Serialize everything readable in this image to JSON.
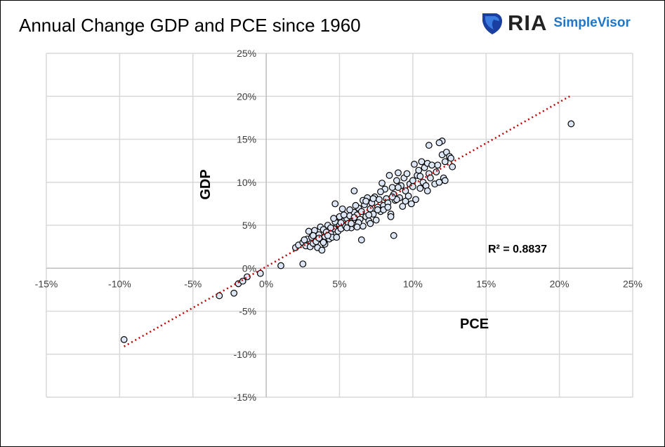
{
  "title": "Annual Change GDP and PCE since 1960",
  "logo": {
    "brand": "RIA",
    "product": "SimpleVisor",
    "brand_color": "#1e77c8"
  },
  "chart_data": {
    "type": "scatter",
    "title": "Annual Change GDP and PCE since 1960",
    "xlabel": "PCE",
    "ylabel": "GDP",
    "xlim": [
      -15,
      25
    ],
    "ylim": [
      -15,
      25
    ],
    "x_ticks": [
      "-15%",
      "-10%",
      "-5%",
      "0%",
      "5%",
      "10%",
      "15%",
      "20%",
      "25%"
    ],
    "y_ticks": [
      "25%",
      "20%",
      "15%",
      "10%",
      "5%",
      "0%",
      "-5%",
      "-10%",
      "-15%"
    ],
    "grid": true,
    "marker_fill": "#dce6f4",
    "marker_edge": "#000000",
    "trendline": {
      "type": "linear",
      "color": "#c00000",
      "style": "dotted",
      "from": [
        -9.7,
        -9.1
      ],
      "to": [
        20.7,
        20.0
      ]
    },
    "annotation": "R² = 0.8837",
    "points": [
      [
        -9.7,
        -8.3
      ],
      [
        -3.2,
        -3.2
      ],
      [
        -2.2,
        -2.9
      ],
      [
        -1.9,
        -1.8
      ],
      [
        -1.6,
        -1.5
      ],
      [
        -1.3,
        -1.0
      ],
      [
        -0.4,
        -0.6
      ],
      [
        1.0,
        0.3
      ],
      [
        2.5,
        0.5
      ],
      [
        6.5,
        3.3
      ],
      [
        8.7,
        3.8
      ],
      [
        20.8,
        16.8
      ],
      [
        12.0,
        14.8
      ],
      [
        11.8,
        14.6
      ],
      [
        11.1,
        14.3
      ],
      [
        2.0,
        2.4
      ],
      [
        2.2,
        2.7
      ],
      [
        2.5,
        3.0
      ],
      [
        2.7,
        2.6
      ],
      [
        2.8,
        3.4
      ],
      [
        2.9,
        4.3
      ],
      [
        3.0,
        2.5
      ],
      [
        3.1,
        3.6
      ],
      [
        3.2,
        2.9
      ],
      [
        3.3,
        4.4
      ],
      [
        3.4,
        3.1
      ],
      [
        3.5,
        2.4
      ],
      [
        3.6,
        3.9
      ],
      [
        3.7,
        4.8
      ],
      [
        3.8,
        2.1
      ],
      [
        3.8,
        3.3
      ],
      [
        3.9,
        4.5
      ],
      [
        4.0,
        2.8
      ],
      [
        4.0,
        3.7
      ],
      [
        4.1,
        4.2
      ],
      [
        4.2,
        5.0
      ],
      [
        4.3,
        3.4
      ],
      [
        4.4,
        4.0
      ],
      [
        4.5,
        3.6
      ],
      [
        4.6,
        4.6
      ],
      [
        4.7,
        5.4
      ],
      [
        4.7,
        7.5
      ],
      [
        4.8,
        3.6
      ],
      [
        4.9,
        4.3
      ],
      [
        5.0,
        5.0
      ],
      [
        5.0,
        6.0
      ],
      [
        5.1,
        4.6
      ],
      [
        5.2,
        6.9
      ],
      [
        5.3,
        5.5
      ],
      [
        5.4,
        4.9
      ],
      [
        5.5,
        5.8
      ],
      [
        5.6,
        5.2
      ],
      [
        5.7,
        6.1
      ],
      [
        5.8,
        4.7
      ],
      [
        5.9,
        5.5
      ],
      [
        6.0,
        6.5
      ],
      [
        6.0,
        9.0
      ],
      [
        6.1,
        5.0
      ],
      [
        6.2,
        6.2
      ],
      [
        6.3,
        7.0
      ],
      [
        6.4,
        5.7
      ],
      [
        6.5,
        6.6
      ],
      [
        6.6,
        4.9
      ],
      [
        6.7,
        7.4
      ],
      [
        6.8,
        6.0
      ],
      [
        6.9,
        8.2
      ],
      [
        7.0,
        5.5
      ],
      [
        7.1,
        6.9
      ],
      [
        7.2,
        7.6
      ],
      [
        7.3,
        6.3
      ],
      [
        7.4,
        8.3
      ],
      [
        7.5,
        5.6
      ],
      [
        7.6,
        7.1
      ],
      [
        7.7,
        8.0
      ],
      [
        7.8,
        6.6
      ],
      [
        7.9,
        9.9
      ],
      [
        8.0,
        7.3
      ],
      [
        8.1,
        9.2
      ],
      [
        8.2,
        8.1
      ],
      [
        8.3,
        7.6
      ],
      [
        8.4,
        10.8
      ],
      [
        8.5,
        6.3
      ],
      [
        8.5,
        6.0
      ],
      [
        8.6,
        9.4
      ],
      [
        8.7,
        8.6
      ],
      [
        8.8,
        7.9
      ],
      [
        8.9,
        10.2
      ],
      [
        9.0,
        11.1
      ],
      [
        9.1,
        8.2
      ],
      [
        9.2,
        9.6
      ],
      [
        9.3,
        7.2
      ],
      [
        9.4,
        10.5
      ],
      [
        9.5,
        9.0
      ],
      [
        9.6,
        11.0
      ],
      [
        9.7,
        8.4
      ],
      [
        9.8,
        9.8
      ],
      [
        10.0,
        10.2
      ],
      [
        10.1,
        12.1
      ],
      [
        10.2,
        8.0
      ],
      [
        10.3,
        10.8
      ],
      [
        10.4,
        11.4
      ],
      [
        10.5,
        9.3
      ],
      [
        10.6,
        12.4
      ],
      [
        10.7,
        10.0
      ],
      [
        10.8,
        11.7
      ],
      [
        10.9,
        9.6
      ],
      [
        11.0,
        12.2
      ],
      [
        11.1,
        11.0
      ],
      [
        11.2,
        10.5
      ],
      [
        11.3,
        12.0
      ],
      [
        11.5,
        9.8
      ],
      [
        11.6,
        11.2
      ],
      [
        11.8,
        10.0
      ],
      [
        12.0,
        13.2
      ],
      [
        12.1,
        10.5
      ],
      [
        12.2,
        12.4
      ],
      [
        12.3,
        13.5
      ],
      [
        12.5,
        13.0
      ],
      [
        12.7,
        11.8
      ],
      [
        12.6,
        12.8
      ],
      [
        12.2,
        10.2
      ],
      [
        11.7,
        12.0
      ],
      [
        9.9,
        7.5
      ],
      [
        9.5,
        7.8
      ],
      [
        8.9,
        8.0
      ],
      [
        7.6,
        6.8
      ],
      [
        7.0,
        6.2
      ],
      [
        6.3,
        5.3
      ],
      [
        5.8,
        5.2
      ],
      [
        5.5,
        4.7
      ],
      [
        5.1,
        5.3
      ],
      [
        4.4,
        4.7
      ],
      [
        3.9,
        3.0
      ],
      [
        3.6,
        3.5
      ],
      [
        3.2,
        3.8
      ],
      [
        2.6,
        3.3
      ],
      [
        6.6,
        7.9
      ],
      [
        7.3,
        8.1
      ],
      [
        6.1,
        7.3
      ],
      [
        8.0,
        6.8
      ],
      [
        8.3,
        7.1
      ],
      [
        9.0,
        9.4
      ],
      [
        10.0,
        9.5
      ],
      [
        10.5,
        10.7
      ],
      [
        11.0,
        9.0
      ],
      [
        7.8,
        8.9
      ],
      [
        6.8,
        7.8
      ],
      [
        5.3,
        6.2
      ],
      [
        4.6,
        5.8
      ],
      [
        4.2,
        3.8
      ],
      [
        6.0,
        5.9
      ],
      [
        6.2,
        4.8
      ],
      [
        5.7,
        6.8
      ],
      [
        7.1,
        5.2
      ],
      [
        8.6,
        8.3
      ]
    ]
  }
}
